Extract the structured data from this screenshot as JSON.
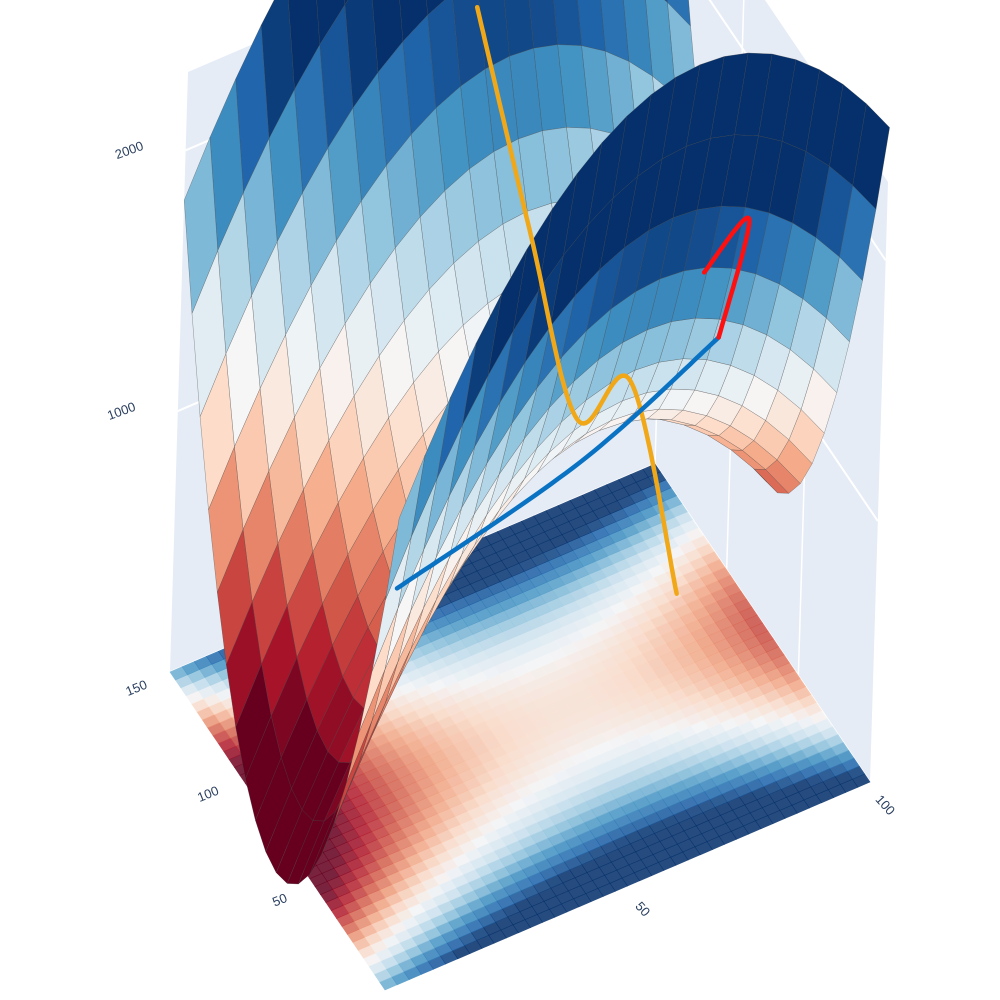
{
  "chart_data": {
    "type": "surface",
    "title": "",
    "scene": {
      "background": "#e5ecf6",
      "grid_color": "#ffffff",
      "x_axis": {
        "title": "",
        "range": [
          0,
          100
        ],
        "ticks": [
          50,
          100
        ]
      },
      "y_axis": {
        "title": "",
        "range": [
          0,
          150
        ],
        "ticks": [
          50,
          100,
          150
        ]
      },
      "z_axis": {
        "title": "",
        "range": [
          0,
          2300
        ],
        "ticks": [
          1000,
          2000
        ]
      }
    },
    "surface": {
      "function": "z = 1100 + 0.35*(y-75)^2 - 0.35*(x-60)^2",
      "colorscale": "RdBu reversed",
      "colorscale_stops": [
        "#05306b",
        "#2166ac",
        "#4393c3",
        "#92c5de",
        "#d1e5f0",
        "#f7f7f7",
        "#fddbc7",
        "#f4a582",
        "#d6604d",
        "#b2182b",
        "#67001f"
      ],
      "contour_lines": true,
      "projected_floor_heatmap": true
    },
    "series": [
      {
        "type": "line3d",
        "color": "#f0a818",
        "points": [
          [
            60,
            5,
            1000
          ],
          [
            60,
            40,
            1530
          ],
          [
            60,
            75,
            1100
          ],
          [
            60,
            110,
            1530
          ],
          [
            60,
            150,
            2070
          ]
        ]
      },
      {
        "type": "line3d",
        "color": "#0a72c2",
        "points": [
          [
            25,
            80,
            690
          ],
          [
            50,
            40,
            1300
          ],
          [
            75,
            30,
            1660
          ]
        ]
      },
      {
        "type": "line3d",
        "color": "#ff1010",
        "points": [
          [
            75,
            30,
            1660
          ],
          [
            90,
            60,
            1750
          ],
          [
            95,
            105,
            1140
          ]
        ]
      }
    ]
  }
}
